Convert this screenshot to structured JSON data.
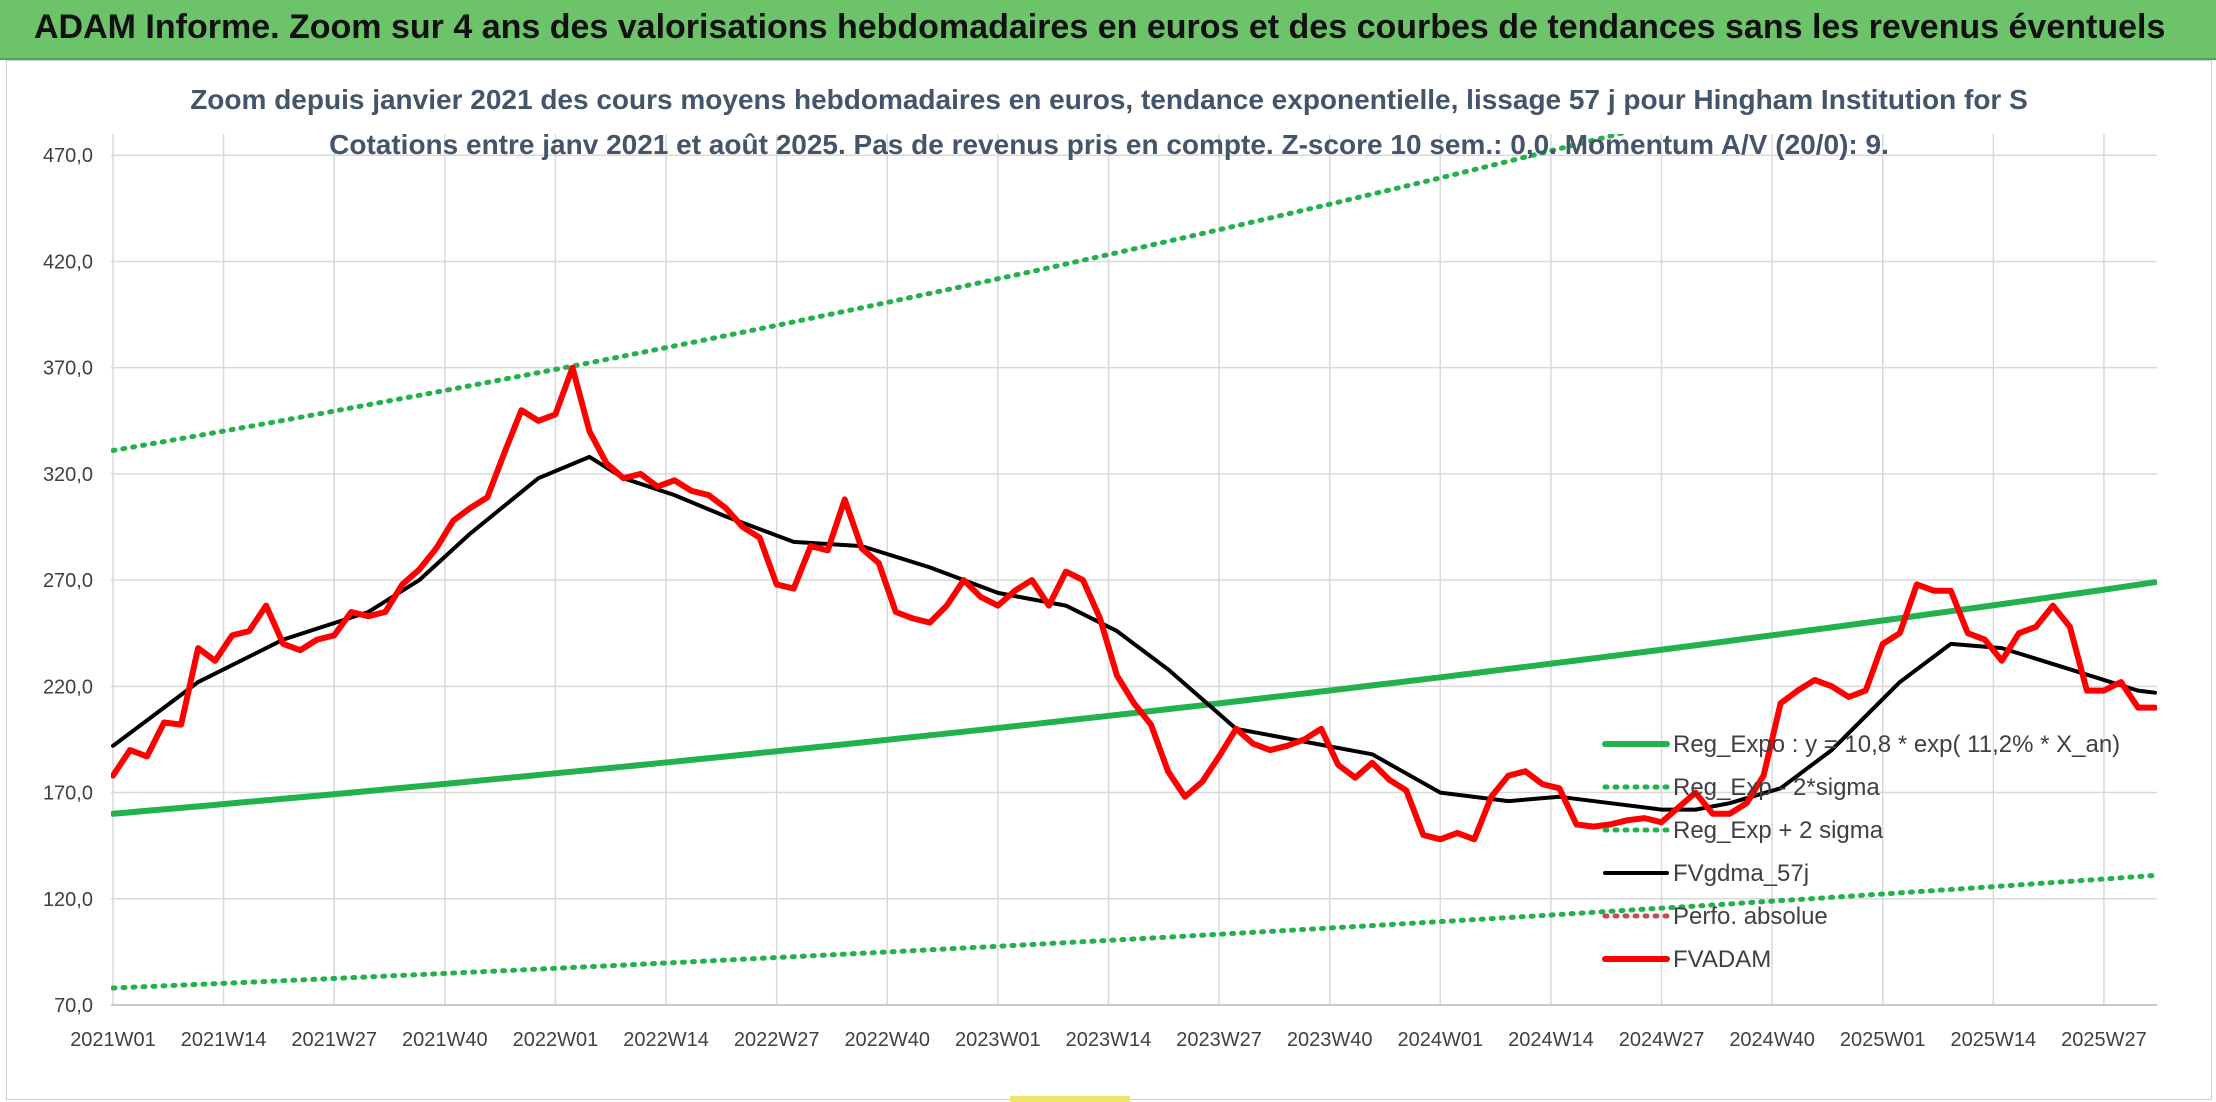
{
  "banner": {
    "title": "ADAM Informe. Zoom sur 4 ans des valorisations hebdomadaires en euros et des courbes de tendances sans les revenus éventuels"
  },
  "colors": {
    "banner_bg": "#6cc36a",
    "trend": "#22b14c",
    "sigma": "#22b14c",
    "fvgdma": "#000000",
    "perfo": "#c0504d",
    "fvadam": "#ff0000"
  },
  "chart_data": {
    "type": "line",
    "title": "Zoom depuis janvier 2021 des cours moyens hebdomadaires en euros, tendance exponentielle, lissage 57 j pour Hingham Institution for S",
    "subtitle": "Cotations entre janv 2021 et août 2025. Pas de revenus pris en compte. Z-score 10 sem.: 0,0. Momentum A/V (20/0): 9.",
    "xlabel": "",
    "ylabel": "",
    "ylim": [
      70,
      480
    ],
    "grid": true,
    "legend_position": "right",
    "y_ticks": [
      "70,0",
      "120,0",
      "170,0",
      "220,0",
      "270,0",
      "320,0",
      "370,0",
      "420,0",
      "470,0"
    ],
    "x_ticks": [
      "2021W01",
      "2021W14",
      "2021W27",
      "2021W40",
      "2022W01",
      "2022W14",
      "2022W27",
      "2022W40",
      "2023W01",
      "2023W14",
      "2023W27",
      "2023W40",
      "2024W01",
      "2024W14",
      "2024W27",
      "2024W40",
      "2025W01",
      "2025W14",
      "2025W27"
    ],
    "series": [
      {
        "name": "Reg_Expo : y = 10,8 * exp( 11,2% *  X_an)",
        "style": "solid-thick",
        "x": [
          0,
          240
        ],
        "y": [
          160,
          269
        ]
      },
      {
        "name": "Reg_Exp - 2*sigma",
        "style": "dotted",
        "x": [
          0,
          240
        ],
        "y": [
          78,
          131
        ]
      },
      {
        "name": "Reg_Exp + 2 sigma",
        "style": "dotted",
        "x": [
          0,
          240
        ],
        "y": [
          331,
          548
        ]
      },
      {
        "name": "FVgdma_57j",
        "style": "solid",
        "x": [
          0,
          10,
          20,
          30,
          36,
          42,
          50,
          56,
          60,
          66,
          72,
          80,
          88,
          96,
          104,
          112,
          118,
          124,
          132,
          140,
          148,
          156,
          164,
          170,
          176,
          182,
          186,
          190,
          196,
          202,
          210,
          216,
          222,
          230,
          238,
          240
        ],
        "y": [
          192,
          222,
          242,
          255,
          270,
          292,
          318,
          328,
          318,
          310,
          300,
          288,
          286,
          276,
          264,
          258,
          246,
          228,
          200,
          194,
          188,
          170,
          166,
          168,
          165,
          162,
          162,
          165,
          172,
          190,
          222,
          240,
          238,
          228,
          218,
          217
        ]
      },
      {
        "name": "Perfo. absolue",
        "style": "dotted",
        "x": [],
        "y": []
      },
      {
        "name": "FVADAM",
        "style": "solid-thick",
        "x": [
          0,
          2,
          4,
          6,
          8,
          10,
          12,
          14,
          16,
          18,
          20,
          22,
          24,
          26,
          28,
          30,
          32,
          34,
          36,
          38,
          40,
          42,
          44,
          46,
          48,
          50,
          52,
          54,
          56,
          58,
          60,
          62,
          64,
          66,
          68,
          70,
          72,
          74,
          76,
          78,
          80,
          82,
          84,
          86,
          88,
          90,
          92,
          94,
          96,
          98,
          100,
          102,
          104,
          106,
          108,
          110,
          112,
          114,
          116,
          118,
          120,
          122,
          124,
          126,
          128,
          130,
          132,
          134,
          136,
          138,
          140,
          142,
          144,
          146,
          148,
          150,
          152,
          154,
          156,
          158,
          160,
          162,
          164,
          166,
          168,
          170,
          172,
          174,
          176,
          178,
          180,
          182,
          184,
          186,
          188,
          190,
          192,
          194,
          196,
          198,
          200,
          202,
          204,
          206,
          208,
          210,
          212,
          214,
          216,
          218,
          220,
          222,
          224,
          226,
          228,
          230,
          232,
          234,
          236,
          238,
          240
        ],
        "y": [
          178,
          190,
          187,
          203,
          202,
          238,
          232,
          244,
          246,
          258,
          240,
          237,
          242,
          244,
          255,
          253,
          255,
          268,
          275,
          285,
          298,
          304,
          309,
          330,
          350,
          345,
          348,
          370,
          340,
          325,
          318,
          320,
          314,
          317,
          312,
          310,
          304,
          295,
          290,
          268,
          266,
          286,
          284,
          308,
          285,
          278,
          255,
          252,
          250,
          258,
          270,
          262,
          258,
          265,
          270,
          258,
          274,
          270,
          252,
          225,
          212,
          202,
          180,
          168,
          175,
          187,
          200,
          193,
          190,
          192,
          195,
          200,
          183,
          177,
          184,
          176,
          171,
          150,
          148,
          151,
          148,
          168,
          178,
          180,
          174,
          172,
          155,
          154,
          155,
          157,
          158,
          156,
          163,
          170,
          160,
          160,
          165,
          178,
          212,
          218,
          223,
          220,
          215,
          218,
          240,
          245,
          268,
          265,
          265,
          245,
          242,
          232,
          245,
          248,
          258,
          248,
          218,
          218,
          222,
          210,
          210
        ]
      }
    ]
  }
}
